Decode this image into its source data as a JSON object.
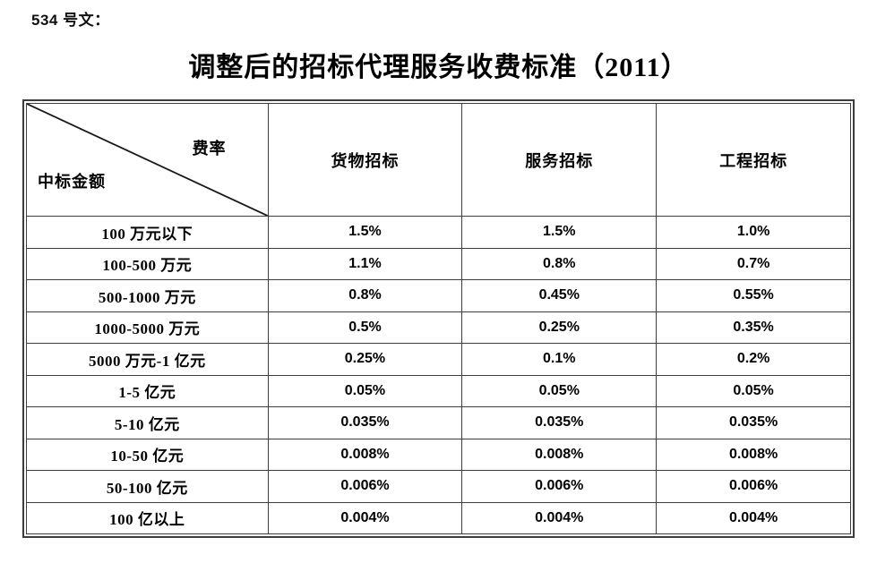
{
  "page": {
    "doc_label": "534 号文：",
    "title": "调整后的招标代理服务收费标准（2011）"
  },
  "table": {
    "corner": {
      "top_right": "费率",
      "bottom_left": "中标金额"
    },
    "columns": [
      "货物招标",
      "服务招标",
      "工程招标"
    ],
    "rows": [
      {
        "label": "100 万元以下",
        "values": [
          "1.5%",
          "1.5%",
          "1.0%"
        ]
      },
      {
        "label": "100-500 万元",
        "values": [
          "1.1%",
          "0.8%",
          "0.7%"
        ]
      },
      {
        "label": "500-1000 万元",
        "values": [
          "0.8%",
          "0.45%",
          "0.55%"
        ]
      },
      {
        "label": "1000-5000 万元",
        "values": [
          "0.5%",
          "0.25%",
          "0.35%"
        ]
      },
      {
        "label": "5000 万元-1 亿元",
        "values": [
          "0.25%",
          "0.1%",
          "0.2%"
        ]
      },
      {
        "label": "1-5 亿元",
        "values": [
          "0.05%",
          "0.05%",
          "0.05%"
        ]
      },
      {
        "label": "5-10 亿元",
        "values": [
          "0.035%",
          "0.035%",
          "0.035%"
        ]
      },
      {
        "label": "10-50 亿元",
        "values": [
          "0.008%",
          "0.008%",
          "0.008%"
        ]
      },
      {
        "label": "50-100 亿元",
        "values": [
          "0.006%",
          "0.006%",
          "0.006%"
        ]
      },
      {
        "label": "100 亿以上",
        "values": [
          "0.004%",
          "0.004%",
          "0.004%"
        ]
      }
    ]
  },
  "colors": {
    "text": "#000000",
    "border": "#3d3d3d",
    "background": "#ffffff"
  }
}
